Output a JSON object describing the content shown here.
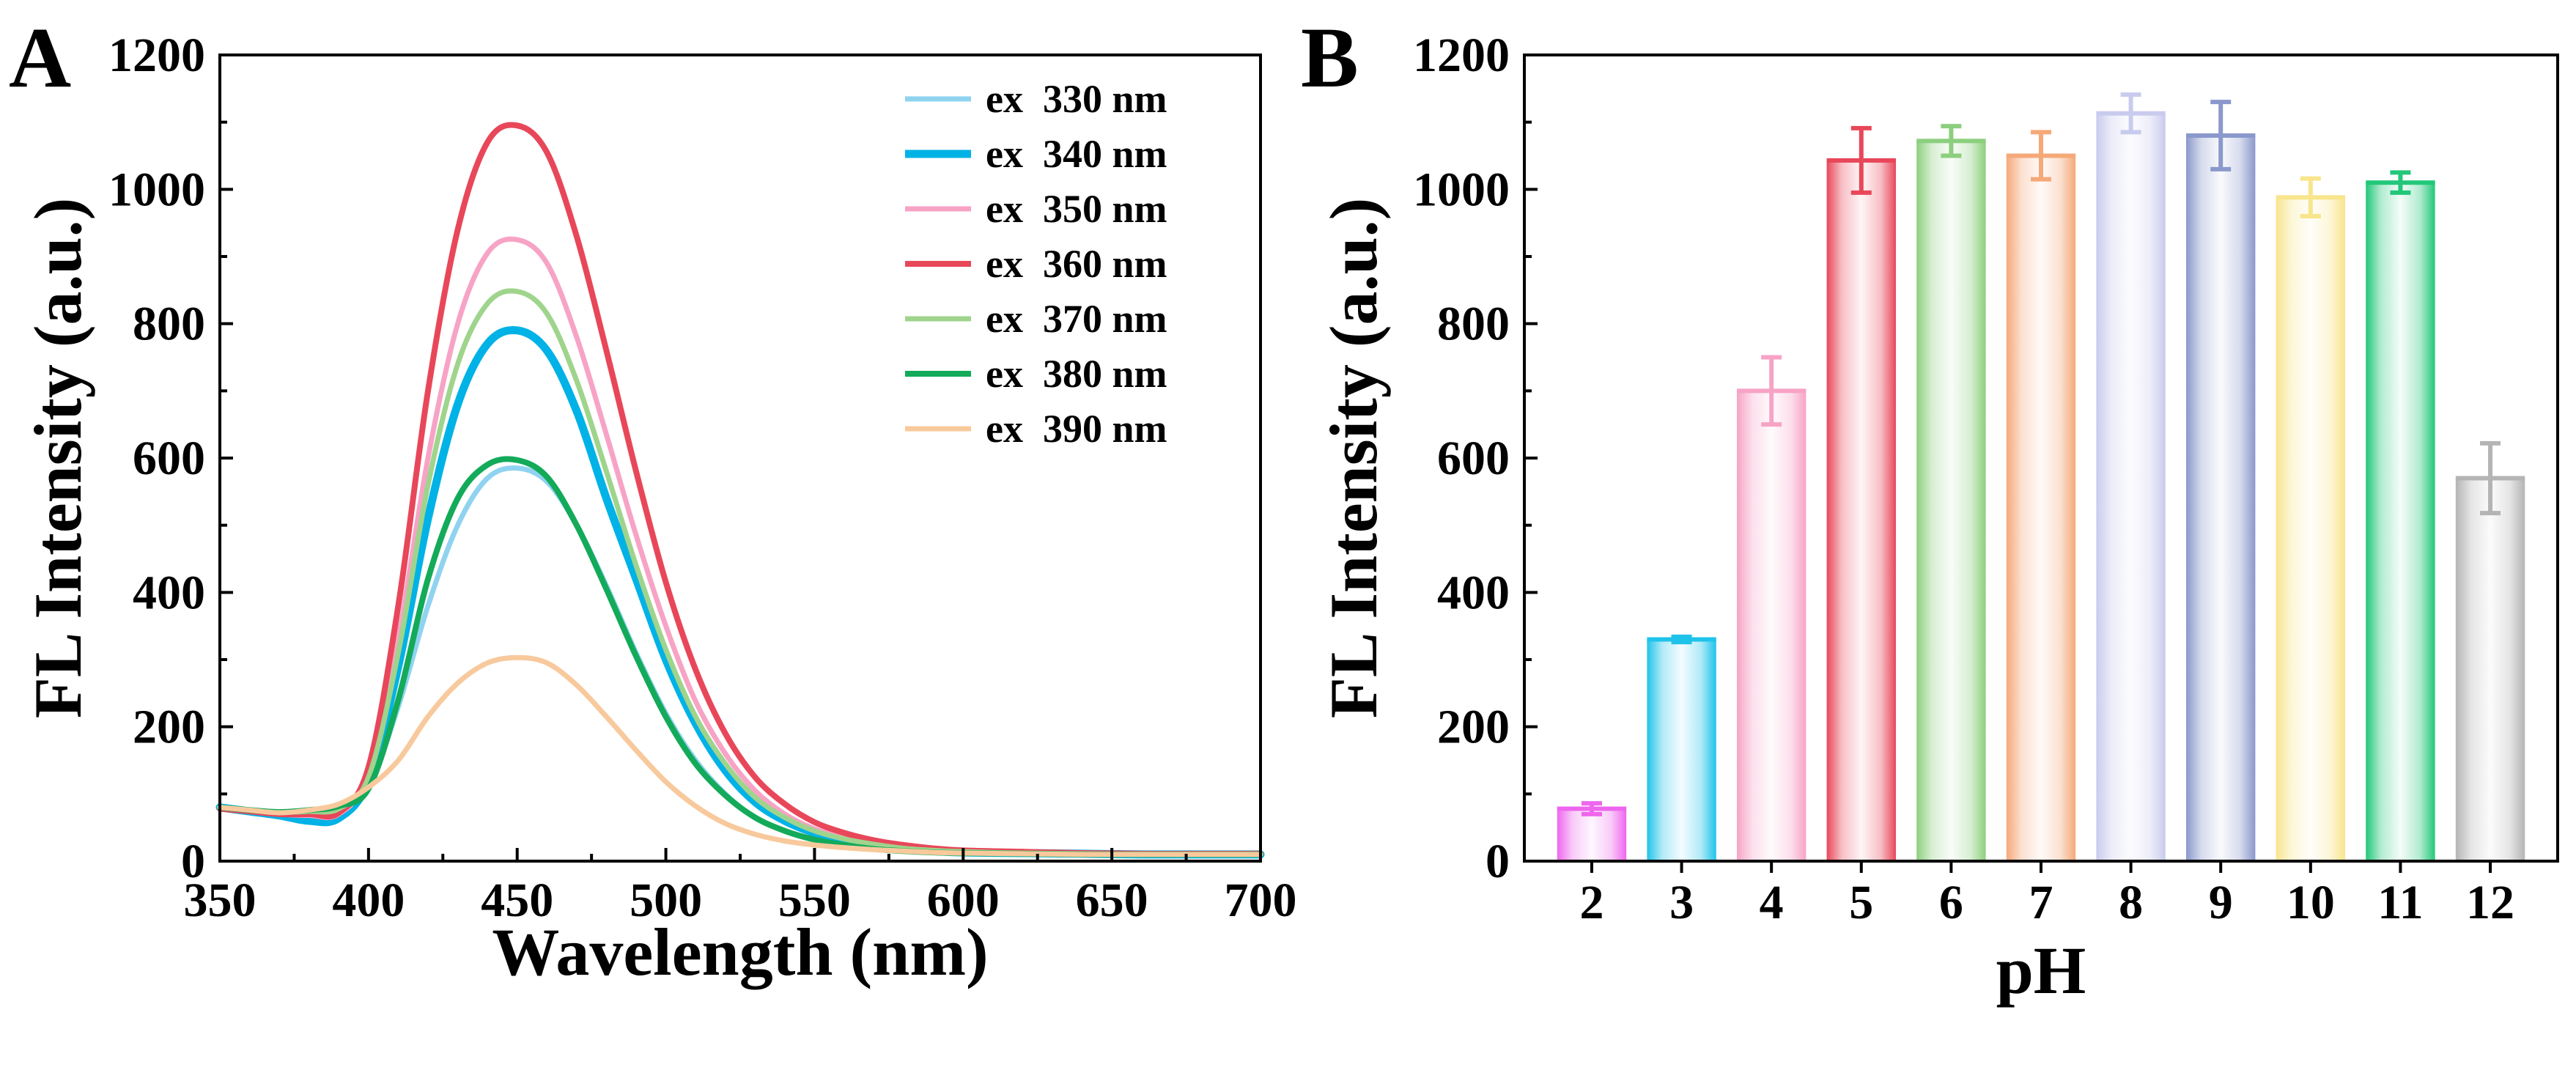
{
  "chart_data": [
    {
      "panel": "A",
      "type": "line",
      "xlabel": "Wavelength (nm)",
      "ylabel": "FL Intensity (a.u.)",
      "xlim": [
        350,
        700
      ],
      "ylim": [
        0,
        1200
      ],
      "xticks": [
        "350",
        "400",
        "450",
        "500",
        "550",
        "600",
        "650",
        "700"
      ],
      "yticks": [
        "0",
        "200",
        "400",
        "600",
        "800",
        "1000",
        "1200"
      ],
      "legend_position": "top-right",
      "x": [
        350,
        360,
        370,
        380,
        390,
        400,
        410,
        420,
        430,
        440,
        450,
        460,
        470,
        480,
        490,
        500,
        510,
        520,
        530,
        540,
        550,
        560,
        570,
        580,
        590,
        600,
        620,
        640,
        660,
        680,
        700
      ],
      "series": [
        {
          "name": "ex  330 nm",
          "color": "#8fd3f0",
          "width": 7,
          "values": [
            80,
            75,
            70,
            62,
            64,
            110,
            230,
            380,
            500,
            570,
            585,
            565,
            500,
            410,
            310,
            220,
            150,
            100,
            65,
            45,
            32,
            24,
            18,
            15,
            13,
            12,
            11,
            10,
            10,
            10,
            10
          ]
        },
        {
          "name": "ex  340 nm",
          "color": "#00b2e6",
          "width": 11,
          "values": [
            80,
            74,
            68,
            60,
            64,
            120,
            290,
            510,
            680,
            770,
            790,
            760,
            670,
            540,
            420,
            300,
            205,
            135,
            88,
            60,
            42,
            30,
            23,
            18,
            15,
            13,
            12,
            11,
            10,
            10,
            10
          ]
        },
        {
          "name": "ex  350 nm",
          "color": "#f7a3c6",
          "width": 7,
          "values": [
            78,
            74,
            70,
            68,
            70,
            130,
            330,
            600,
            800,
            905,
            925,
            890,
            780,
            635,
            485,
            350,
            238,
            160,
            105,
            70,
            48,
            35,
            26,
            20,
            16,
            14,
            12,
            11,
            10,
            10,
            10
          ]
        },
        {
          "name": "ex  360 nm",
          "color": "#e8475a",
          "width": 8,
          "values": [
            78,
            74,
            70,
            70,
            72,
            140,
            380,
            700,
            940,
            1070,
            1095,
            1055,
            930,
            760,
            580,
            415,
            285,
            190,
            125,
            85,
            58,
            42,
            31,
            24,
            19,
            16,
            14,
            12,
            11,
            11,
            11
          ]
        },
        {
          "name": "ex  370 nm",
          "color": "#9fd48c",
          "width": 7,
          "values": [
            80,
            76,
            73,
            74,
            78,
            125,
            310,
            560,
            740,
            830,
            848,
            815,
            715,
            580,
            440,
            315,
            215,
            145,
            95,
            65,
            45,
            33,
            25,
            19,
            16,
            14,
            12,
            11,
            10,
            10,
            10
          ]
        },
        {
          "name": "ex  380 nm",
          "color": "#13aa5a",
          "width": 8,
          "values": [
            80,
            76,
            73,
            76,
            82,
            108,
            240,
            420,
            540,
            590,
            597,
            572,
            500,
            405,
            305,
            215,
            145,
            98,
            65,
            45,
            32,
            24,
            18,
            15,
            13,
            12,
            11,
            10,
            10,
            10,
            10
          ]
        },
        {
          "name": "ex  390 nm",
          "color": "#f8c99c",
          "width": 7,
          "values": [
            80,
            76,
            72,
            76,
            85,
            110,
            150,
            215,
            265,
            295,
            303,
            295,
            262,
            215,
            165,
            118,
            82,
            56,
            40,
            30,
            24,
            20,
            17,
            15,
            13,
            12,
            11,
            10,
            10,
            10,
            10
          ]
        }
      ]
    },
    {
      "panel": "B",
      "type": "bar",
      "xlabel": "pH",
      "ylabel": "FL Intensity (a.u.)",
      "ylim": [
        0,
        1200
      ],
      "yticks": [
        "0",
        "200",
        "400",
        "600",
        "800",
        "1000",
        "1200"
      ],
      "categories": [
        "2",
        "3",
        "4",
        "5",
        "6",
        "7",
        "8",
        "9",
        "10",
        "11",
        "12"
      ],
      "values": [
        78,
        330,
        700,
        1043,
        1072,
        1050,
        1113,
        1080,
        988,
        1010,
        570
      ],
      "errors": [
        8,
        4,
        50,
        48,
        22,
        35,
        28,
        50,
        28,
        15,
        52
      ],
      "colors": [
        "#ee66ee",
        "#1fc3ea",
        "#f7a3c6",
        "#e8475a",
        "#8ccf7e",
        "#f5a878",
        "#c9cbee",
        "#8a98cc",
        "#f8e58c",
        "#23c77a",
        "#b4b4b4"
      ]
    }
  ]
}
